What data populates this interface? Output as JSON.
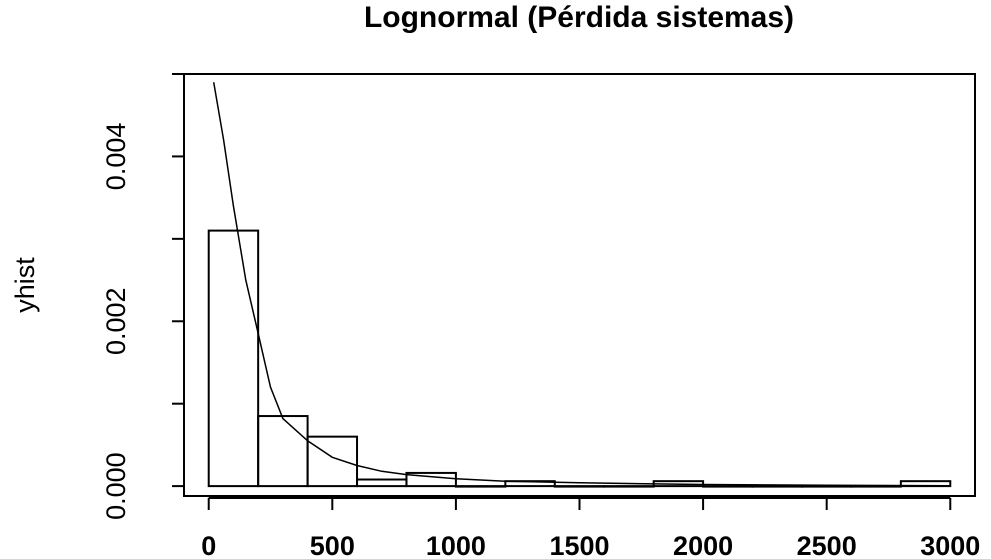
{
  "chart_data": {
    "type": "histogram",
    "title": "Lognormal (Pérdida sistemas)",
    "xlabel": "",
    "ylabel": "yhist",
    "xlim": [
      -100,
      3100
    ],
    "ylim": [
      -0.00012,
      0.005
    ],
    "x_ticks": [
      0,
      500,
      1000,
      1500,
      2000,
      2500,
      3000
    ],
    "x_tick_labels": [
      "0",
      "500",
      "1000",
      "1500",
      "2000",
      "2500",
      "3000"
    ],
    "y_ticks": [
      0.0,
      0.001,
      0.002,
      0.003,
      0.004,
      0.005
    ],
    "y_tick_labels": [
      "0.000",
      "",
      "0.002",
      "",
      "0.004",
      ""
    ],
    "bins": [
      {
        "x0": 0,
        "x1": 200,
        "y": 0.0031
      },
      {
        "x0": 200,
        "x1": 400,
        "y": 0.00085
      },
      {
        "x0": 400,
        "x1": 600,
        "y": 0.0006
      },
      {
        "x0": 600,
        "x1": 800,
        "y": 8e-05
      },
      {
        "x0": 800,
        "x1": 1000,
        "y": 0.00016
      },
      {
        "x0": 1000,
        "x1": 1200,
        "y": 0.0
      },
      {
        "x0": 1200,
        "x1": 1400,
        "y": 6e-05
      },
      {
        "x0": 1400,
        "x1": 1600,
        "y": 0.0
      },
      {
        "x0": 1600,
        "x1": 1800,
        "y": 0.0
      },
      {
        "x0": 1800,
        "x1": 2000,
        "y": 6e-05
      },
      {
        "x0": 2000,
        "x1": 2200,
        "y": 0.0
      },
      {
        "x0": 2200,
        "x1": 2400,
        "y": 0.0
      },
      {
        "x0": 2400,
        "x1": 2600,
        "y": 0.0
      },
      {
        "x0": 2600,
        "x1": 2800,
        "y": 0.0
      },
      {
        "x0": 2800,
        "x1": 3000,
        "y": 6e-05
      }
    ],
    "curve": {
      "x": [
        20,
        60,
        100,
        150,
        200,
        250,
        300,
        400,
        500,
        600,
        700,
        800,
        1000,
        1200,
        1500,
        2000,
        2500,
        3000
      ],
      "y": [
        0.0049,
        0.0042,
        0.0034,
        0.0025,
        0.00185,
        0.0012,
        0.00082,
        0.00055,
        0.00035,
        0.00025,
        0.00018,
        0.00014,
        9e-05,
        6e-05,
        4e-05,
        2e-05,
        1e-05,
        5e-06
      ]
    }
  }
}
